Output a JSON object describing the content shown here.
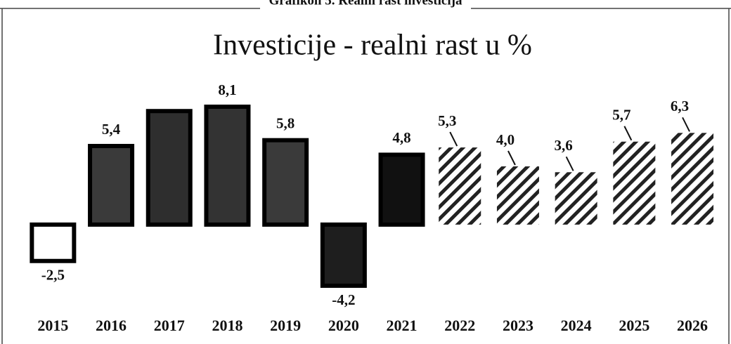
{
  "header": "Grafikon 5. Realni rast investicija",
  "chart_data": {
    "type": "bar",
    "title": "Investicije - realni rast u %",
    "categories": [
      "2015",
      "2016",
      "2017",
      "2018",
      "2019",
      "2020",
      "2021",
      "2022",
      "2023",
      "2024",
      "2025",
      "2026"
    ],
    "values": [
      -2.5,
      5.4,
      7.8,
      8.1,
      5.8,
      -4.2,
      4.8,
      5.3,
      4.0,
      3.6,
      5.7,
      6.3
    ],
    "value_labels": [
      "-2,5",
      "5,4",
      null,
      "8,1",
      "5,8",
      "-4,2",
      "4,8",
      "5,3",
      "4,0",
      "3,6",
      "5,7",
      "6,3"
    ],
    "colors": [
      "#ffffff",
      "#3a3a3a",
      "#2e2e2e",
      "#333333",
      "#3a3a3a",
      "#1e1e1e",
      "#111111",
      "#222222",
      "#222222",
      "#222222",
      "#222222",
      "#222222"
    ],
    "patterns": [
      "solid",
      "solid",
      "solid",
      "solid",
      "solid",
      "solid",
      "solid",
      "hatch",
      "hatch",
      "hatch",
      "hatch",
      "hatch"
    ]
  }
}
